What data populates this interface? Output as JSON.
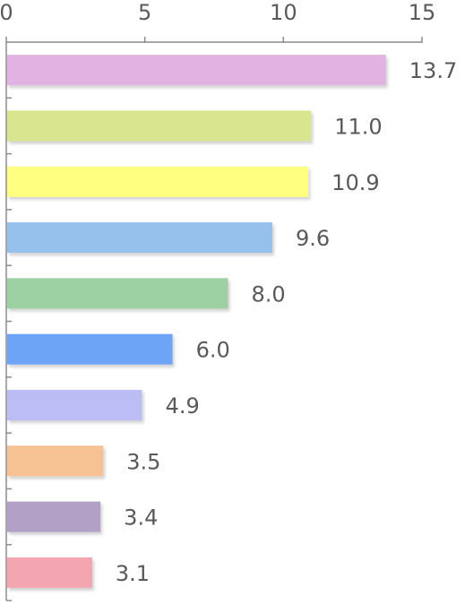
{
  "chart_data": {
    "type": "bar",
    "orientation": "horizontal",
    "x_ticks": [
      0,
      5,
      10,
      15
    ],
    "xlim": [
      0,
      15
    ],
    "x_axis_position": "top",
    "grid": false,
    "legend": "none",
    "values": [
      13.7,
      11.0,
      10.9,
      9.6,
      8.0,
      6.0,
      4.9,
      3.5,
      3.4,
      3.1
    ],
    "value_labels": [
      "13.7",
      "11.0",
      "10.9",
      "9.6",
      "8.0",
      "6.0",
      "4.9",
      "3.5",
      "3.4",
      "3.1"
    ],
    "colors": [
      "#e2b3e2",
      "#d9e58f",
      "#ffff80",
      "#96c1ed",
      "#9dd0a3",
      "#6da4f5",
      "#bcbdf4",
      "#f7c293",
      "#b2a0c7",
      "#f4a6b0"
    ]
  }
}
